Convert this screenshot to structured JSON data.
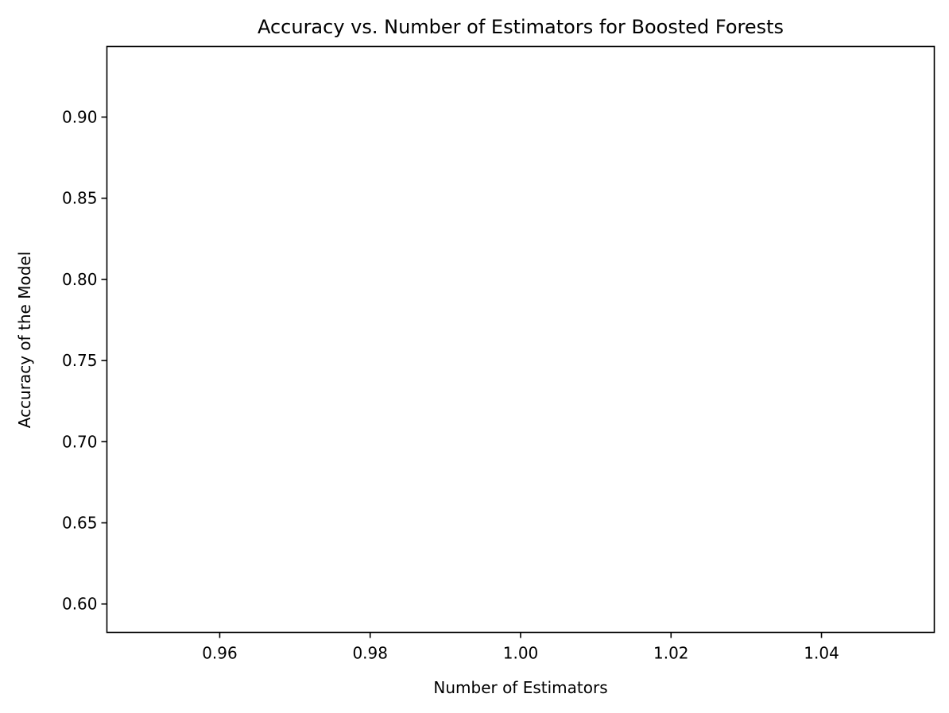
{
  "chart_data": {
    "type": "scatter",
    "title": "Accuracy vs. Number of Estimators for Boosted Forests",
    "xlabel": "Number of Estimators",
    "ylabel": "Accuracy of the Model",
    "xlim": [
      0.945,
      1.055
    ],
    "ylim": [
      0.5825,
      0.9435
    ],
    "xticks": [
      0.96,
      0.98,
      1.0,
      1.02,
      1.04
    ],
    "xtick_labels": [
      "0.96",
      "0.98",
      "1.00",
      "1.02",
      "1.04"
    ],
    "yticks": [
      0.6,
      0.65,
      0.7,
      0.75,
      0.8,
      0.85,
      0.9
    ],
    "ytick_labels": [
      "0.60",
      "0.65",
      "0.70",
      "0.75",
      "0.80",
      "0.85",
      "0.90"
    ],
    "grid": false,
    "series": []
  }
}
